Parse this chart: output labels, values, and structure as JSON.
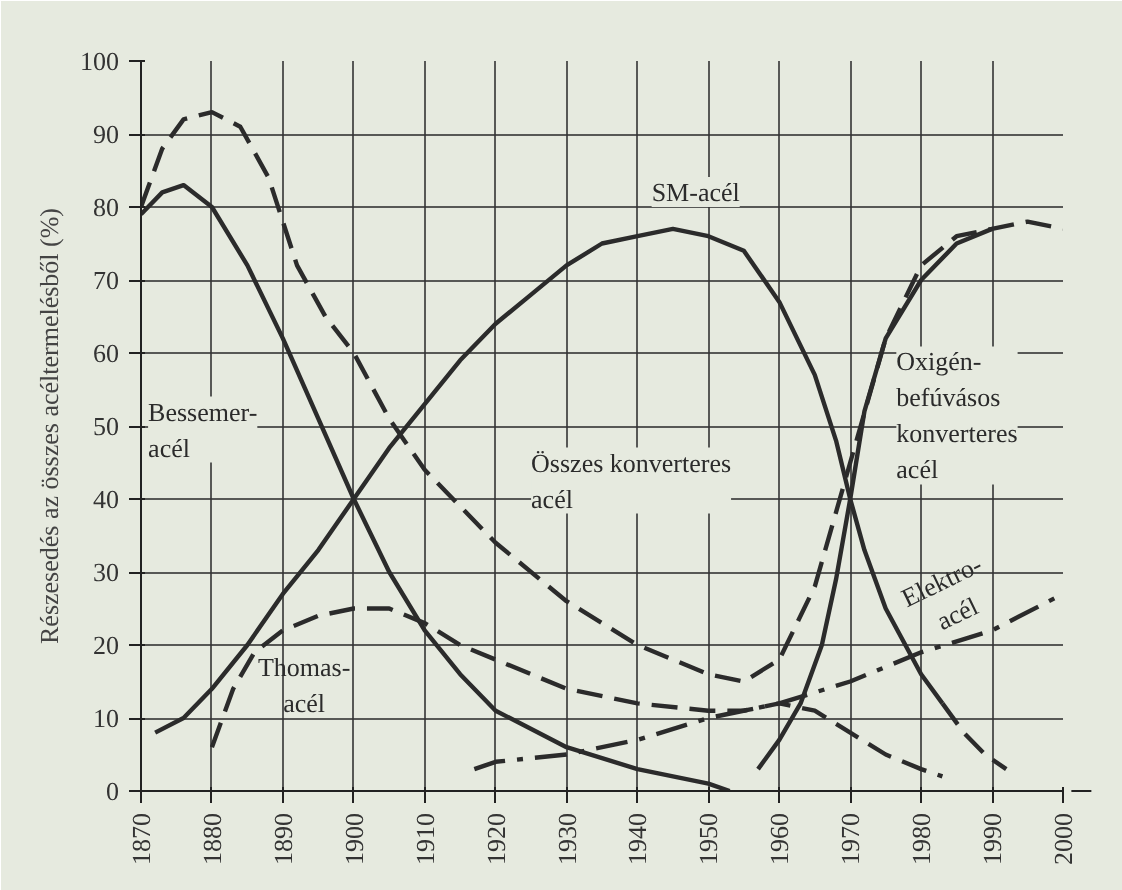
{
  "chart_data": {
    "type": "line",
    "ylabel": "Részesedés az összes acéltermelésből (%)",
    "xlim": [
      1870,
      2000
    ],
    "ylim": [
      0,
      100
    ],
    "xticks": [
      1870,
      1880,
      1890,
      1900,
      1910,
      1920,
      1930,
      1940,
      1950,
      1960,
      1970,
      1980,
      1990,
      2000
    ],
    "yticks": [
      0,
      10,
      20,
      30,
      40,
      50,
      60,
      70,
      80,
      90,
      100
    ],
    "grid": true,
    "marker": "none",
    "series": [
      {
        "name": "Bessemer-acél",
        "color": "#2b2b2b",
        "line_style": "solid",
        "x": [
          1870,
          1873,
          1876,
          1880,
          1885,
          1890,
          1895,
          1900,
          1905,
          1910,
          1915,
          1920,
          1930,
          1940,
          1950,
          1953
        ],
        "values": [
          79,
          82,
          83,
          80,
          72,
          62,
          51,
          40,
          30,
          22,
          16,
          11,
          6,
          3,
          1,
          0
        ]
      },
      {
        "name": "Összes konverteres acél",
        "color": "#2b2b2b",
        "line_style": "dashed",
        "x": [
          1870,
          1873,
          1876,
          1880,
          1884,
          1888,
          1892,
          1896,
          1900,
          1905,
          1910,
          1915,
          1920,
          1930,
          1940,
          1950,
          1955,
          1960,
          1965,
          1970,
          1975,
          1980,
          1985,
          1990,
          1995,
          2000
        ],
        "values": [
          80,
          88,
          92,
          93,
          91,
          84,
          72,
          65,
          60,
          51,
          44,
          39,
          34,
          26,
          20,
          16,
          15,
          18,
          28,
          45,
          62,
          72,
          76,
          77,
          78,
          77
        ]
      },
      {
        "name": "SM-acél",
        "color": "#2b2b2b",
        "line_style": "solid",
        "x": [
          1872,
          1876,
          1880,
          1885,
          1890,
          1895,
          1900,
          1905,
          1910,
          1915,
          1920,
          1925,
          1930,
          1935,
          1940,
          1945,
          1950,
          1955,
          1960,
          1965,
          1968,
          1970,
          1972,
          1975,
          1980,
          1983
        ],
        "values": [
          8,
          10,
          14,
          20,
          27,
          33,
          40,
          47,
          53,
          59,
          64,
          68,
          72,
          75,
          76,
          77,
          76,
          74,
          67,
          57,
          48,
          40,
          33,
          25,
          16,
          12
        ]
      },
      {
        "color": "#2b2b2b",
        "line_style": "dashed",
        "x": [
          1983,
          1986,
          1989,
          1992
        ],
        "values": [
          12,
          8,
          5,
          3
        ]
      },
      {
        "name": "Thomas-acél",
        "color": "#2b2b2b",
        "line_style": "dashed",
        "x": [
          1880,
          1883,
          1886,
          1890,
          1895,
          1900,
          1905,
          1910,
          1915,
          1920,
          1930,
          1940,
          1950,
          1955,
          1960,
          1965,
          1970,
          1975,
          1980,
          1983
        ],
        "values": [
          6,
          14,
          19,
          22,
          24,
          25,
          25,
          23,
          20,
          18,
          14,
          12,
          11,
          11,
          12,
          11,
          8,
          5,
          3,
          2
        ]
      },
      {
        "name": "Oxigén-befúvásos konverteres acél",
        "color": "#2b2b2b",
        "line_style": "solid",
        "x": [
          1957,
          1960,
          1963,
          1966,
          1968,
          1970,
          1972,
          1975,
          1980,
          1985,
          1990
        ],
        "values": [
          3,
          7,
          12,
          20,
          29,
          40,
          52,
          62,
          70,
          75,
          77
        ]
      },
      {
        "name": "Elektro-acél",
        "color": "#2b2b2b",
        "line_style": "dashdot",
        "x": [
          1917,
          1920,
          1930,
          1940,
          1950,
          1960,
          1970,
          1980,
          1990,
          2000
        ],
        "values": [
          3,
          4,
          5,
          7,
          10,
          12,
          15,
          19,
          22,
          27
        ]
      }
    ]
  }
}
